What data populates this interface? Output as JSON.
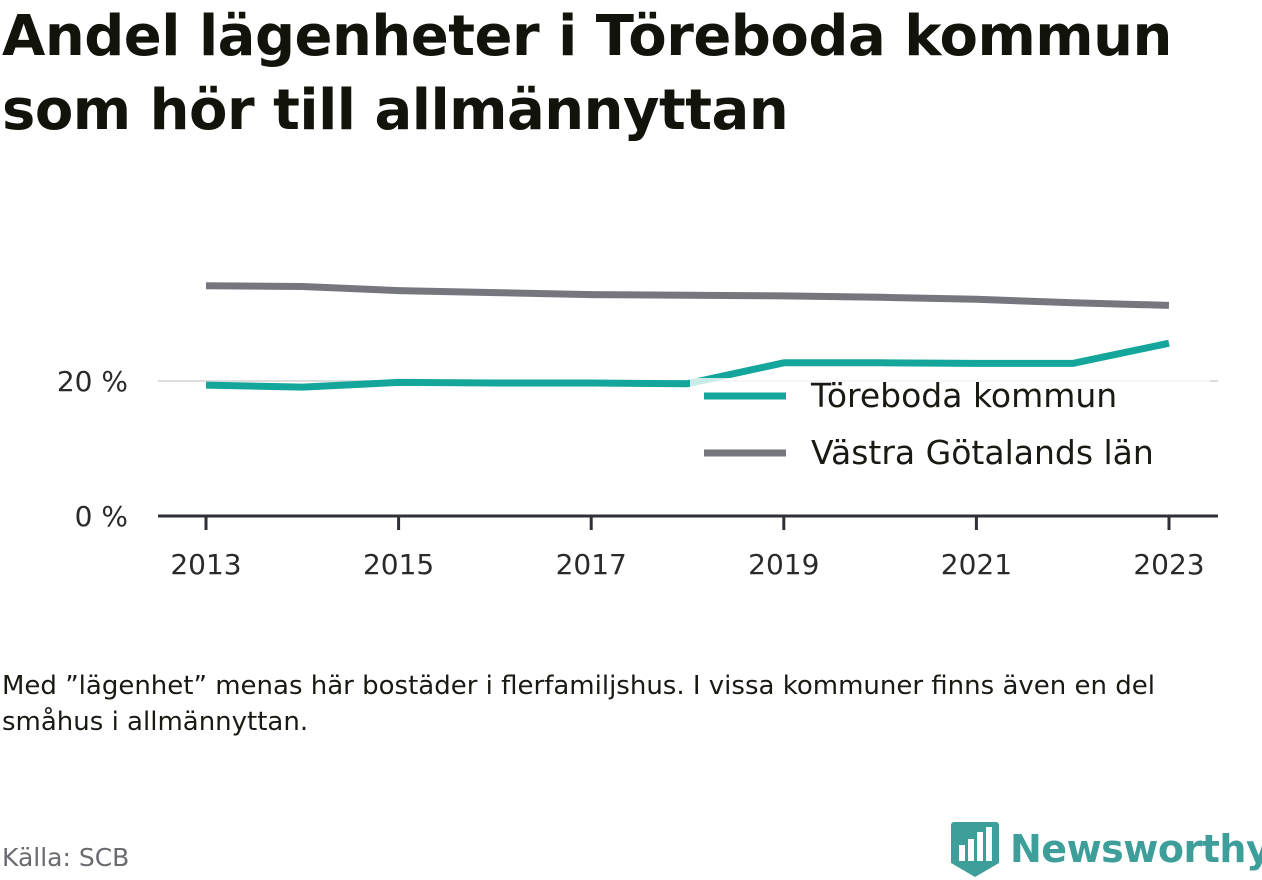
{
  "title": "Andel lägenheter i Töreboda kommun som hör till allmännyttan",
  "note": "Med ”lägenhet” menas här bostäder i flerfamiljshus. I vissa kommuner finns även en del småhus i allmännyttan.",
  "source": "Källa: SCB",
  "brand": {
    "name": "Newsworthy",
    "icon": "newsworthy-logo-icon",
    "color": "#3e9e9a"
  },
  "chart_data": {
    "type": "line",
    "title": "Andel lägenheter i Töreboda kommun som hör till allmännyttan",
    "xlabel": "",
    "ylabel": "",
    "x": [
      2013,
      2014,
      2015,
      2016,
      2017,
      2018,
      2019,
      2020,
      2021,
      2022,
      2023
    ],
    "x_tick_labels": [
      "2013",
      "2015",
      "2017",
      "2019",
      "2021",
      "2023"
    ],
    "x_ticks": [
      2013,
      2015,
      2017,
      2019,
      2021,
      2023
    ],
    "y_ticks": [
      0,
      20
    ],
    "y_tick_labels": [
      "0 %",
      "20 %"
    ],
    "ylim": [
      0,
      30
    ],
    "grid": "horizontal at 20 %",
    "legend_position": "bottom-right",
    "series": [
      {
        "name": "Töreboda kommun",
        "color": "#14a69b",
        "values": [
          19.4,
          19.1,
          19.8,
          19.7,
          19.7,
          19.6,
          22.7,
          22.7,
          22.6,
          22.6,
          25.6
        ]
      },
      {
        "name": "Västra Götalands län",
        "color": "#76767e",
        "values": [
          34.1,
          34.0,
          33.4,
          33.1,
          32.8,
          32.7,
          32.6,
          32.4,
          32.1,
          31.6,
          31.2
        ]
      }
    ]
  }
}
